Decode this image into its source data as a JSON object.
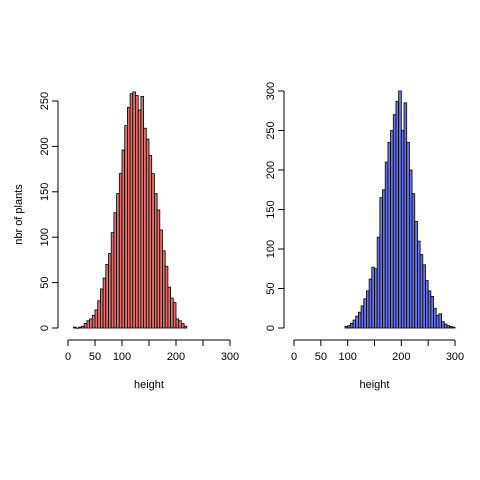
{
  "chart_data": [
    {
      "type": "bar",
      "chart_kind": "histogram",
      "xlabel": "height",
      "ylabel": "nbr of plants",
      "xlim": [
        0,
        300
      ],
      "ylim": [
        0,
        260
      ],
      "x_ticks": [
        0,
        50,
        100,
        200,
        300
      ],
      "x_tick_marks": [
        0,
        50,
        100,
        150,
        200,
        250,
        300
      ],
      "y_ticks": [
        0,
        50,
        100,
        150,
        200,
        250
      ],
      "bin_width": 5,
      "bins_start": [
        10,
        15,
        20,
        25,
        30,
        35,
        40,
        45,
        50,
        55,
        60,
        65,
        70,
        75,
        80,
        85,
        90,
        95,
        100,
        105,
        110,
        115,
        120,
        125,
        130,
        135,
        140,
        145,
        150,
        155,
        160,
        165,
        170,
        175,
        180,
        185,
        190,
        195,
        200,
        205,
        210,
        215
      ],
      "values": [
        1,
        0,
        1,
        2,
        5,
        8,
        10,
        14,
        20,
        30,
        43,
        55,
        70,
        82,
        105,
        127,
        148,
        170,
        196,
        223,
        243,
        258,
        260,
        256,
        240,
        255,
        220,
        208,
        190,
        170,
        148,
        130,
        108,
        85,
        68,
        45,
        33,
        28,
        10,
        8,
        5,
        2
      ],
      "fill_color": "#e2706e",
      "grid": false
    },
    {
      "type": "bar",
      "chart_kind": "histogram",
      "xlabel": "height",
      "ylabel": "",
      "xlim": [
        0,
        300
      ],
      "ylim": [
        0,
        300
      ],
      "x_ticks": [
        0,
        50,
        100,
        200,
        300
      ],
      "x_tick_marks": [
        0,
        50,
        100,
        150,
        200,
        250,
        300
      ],
      "y_ticks": [
        0,
        50,
        100,
        150,
        200,
        250,
        300
      ],
      "bin_width": 5,
      "bins_start": [
        95,
        100,
        105,
        110,
        115,
        120,
        125,
        130,
        135,
        140,
        145,
        150,
        155,
        160,
        165,
        170,
        175,
        180,
        185,
        190,
        195,
        200,
        205,
        210,
        215,
        220,
        225,
        230,
        235,
        240,
        245,
        250,
        255,
        260,
        265,
        270,
        275,
        280,
        285,
        290,
        295
      ],
      "values": [
        2,
        3,
        6,
        10,
        15,
        20,
        28,
        37,
        47,
        62,
        77,
        75,
        115,
        165,
        175,
        210,
        235,
        250,
        270,
        287,
        300,
        250,
        285,
        235,
        200,
        170,
        135,
        110,
        93,
        80,
        60,
        47,
        40,
        25,
        16,
        18,
        8,
        5,
        3,
        2,
        1
      ],
      "fill_color": "#6a74e6",
      "grid": false
    }
  ]
}
